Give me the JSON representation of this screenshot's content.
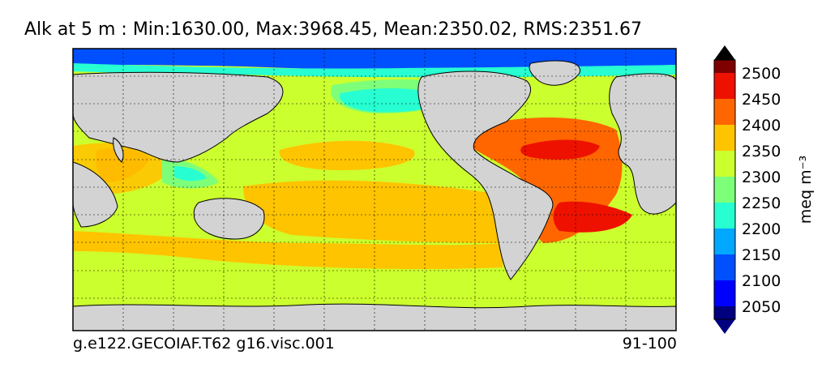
{
  "title": "Alk at 5 m : Min:1630.00, Max:3968.45, Mean:2350.02, RMS:2351.67",
  "footer": {
    "case_name": "g.e122.GECOIAF.T62 g16.visc.001",
    "years": "91-100"
  },
  "chart_data": {
    "type": "heatmap",
    "variable": "Alk",
    "depth": "5 m",
    "stats": {
      "min": 1630.0,
      "max": 3968.45,
      "mean": 2350.02,
      "rms": 2351.67
    },
    "colorbar": {
      "units_label": "meq m⁻³",
      "levels": [
        2025,
        2050,
        2075,
        2100,
        2125,
        2150,
        2175,
        2200,
        2225,
        2250,
        2275,
        2300,
        2325,
        2350,
        2375,
        2400,
        2425,
        2450,
        2475,
        2500,
        2525
      ],
      "tick_labels": [
        "2050",
        "2100",
        "2150",
        "2200",
        "2250",
        "2300",
        "2350",
        "2400",
        "2450",
        "2500"
      ],
      "tick_values": [
        2050,
        2100,
        2150,
        2200,
        2250,
        2300,
        2350,
        2400,
        2450,
        2500
      ],
      "colors": [
        "#00007f",
        "#0000ff",
        "#0050ff",
        "#00a8ff",
        "#27ffd2",
        "#7dff7a",
        "#ccff2e",
        "#ffc400",
        "#ff6600",
        "#ee1100",
        "#7f0000"
      ],
      "extend": "both"
    },
    "map": {
      "lon_range": [
        30,
        390
      ],
      "lat_range": [
        -80,
        90
      ],
      "grid": true,
      "land_color": "#d3d3d3"
    }
  }
}
